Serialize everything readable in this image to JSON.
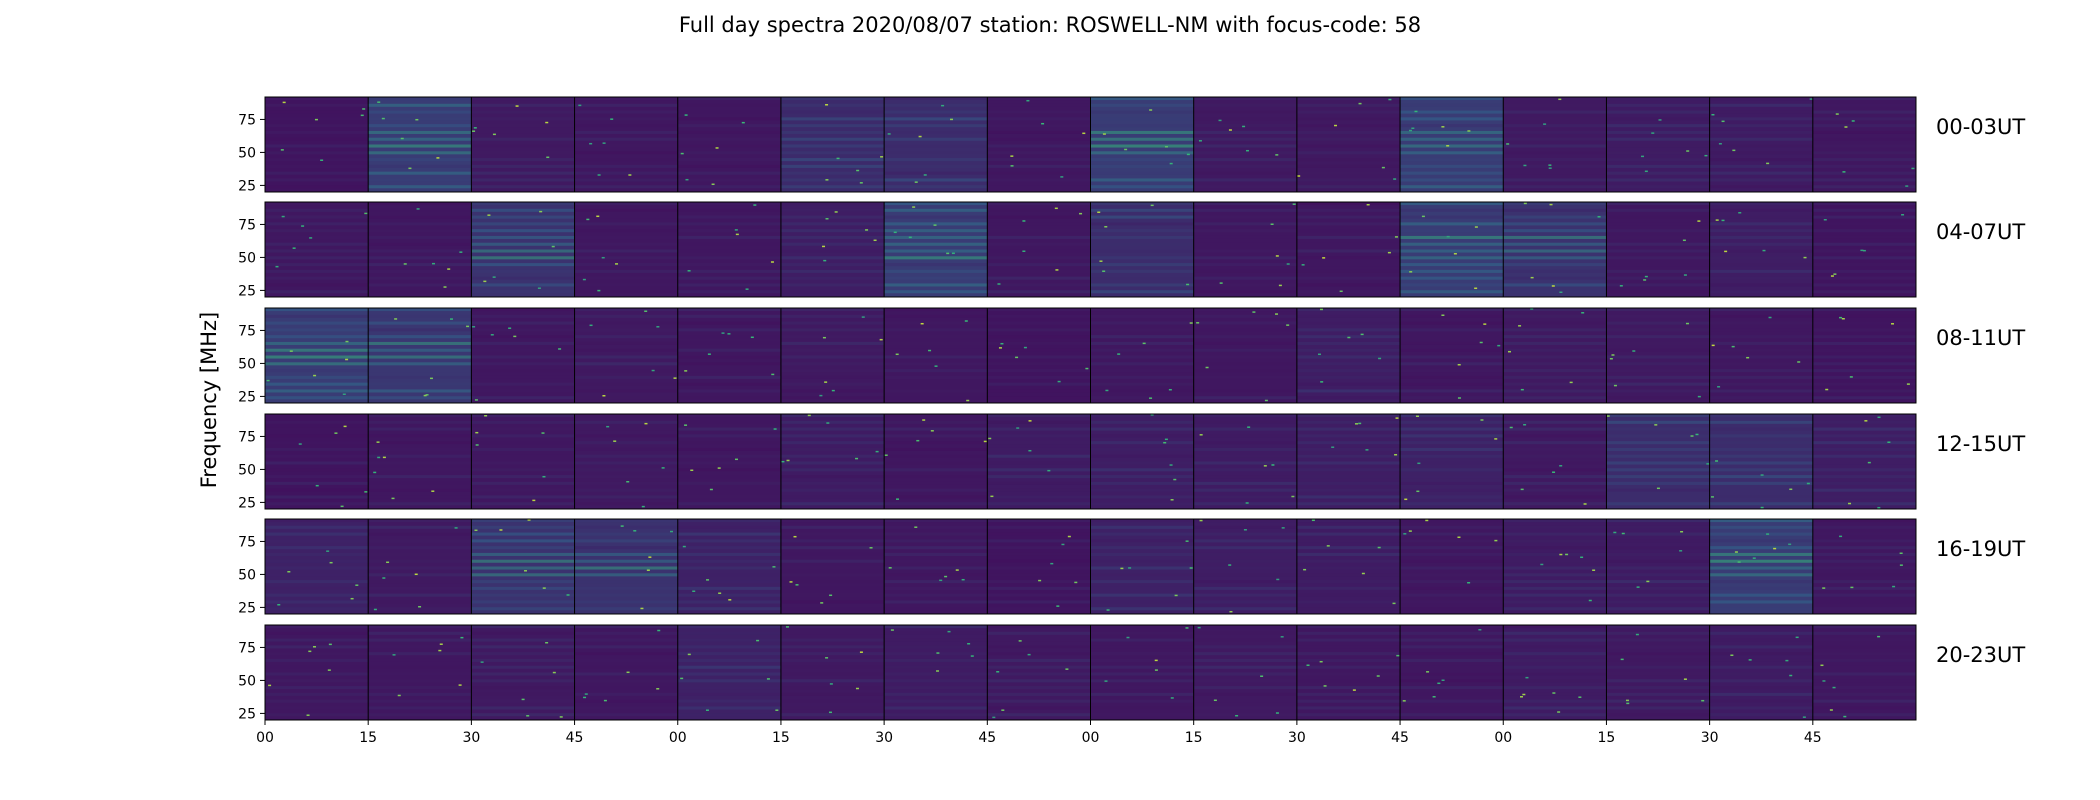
{
  "chart_data": {
    "type": "heatmap",
    "title": "Full day spectra 2020/08/07 station: ROSWELL-NM with focus-code: 58",
    "ylabel": "Frequency [MHz]",
    "xlabel": "",
    "ylim": [
      20,
      92
    ],
    "y_ticks": [
      "25",
      "50",
      "75"
    ],
    "y_tick_values": [
      25,
      50,
      75
    ],
    "x_ticks": [
      "00",
      "15",
      "30",
      "45",
      "00",
      "15",
      "30",
      "45",
      "00",
      "15",
      "30",
      "45",
      "00",
      "15",
      "30",
      "45"
    ],
    "rows": [
      "00-03UT",
      "04-07UT",
      "08-11UT",
      "12-15UT",
      "16-19UT",
      "20-23UT"
    ],
    "panels_per_row": 16,
    "minutes_per_panel": 15,
    "colormap": "viridis",
    "colors": {
      "low": "#440154",
      "mid": "#31688e",
      "high": "#35b779",
      "peak": "#fde725"
    },
    "intensity_grid": [
      [
        0.18,
        0.55,
        0.22,
        0.2,
        0.2,
        0.38,
        0.4,
        0.2,
        0.55,
        0.22,
        0.22,
        0.55,
        0.22,
        0.24,
        0.24,
        0.2
      ],
      [
        0.2,
        0.2,
        0.45,
        0.2,
        0.2,
        0.26,
        0.55,
        0.2,
        0.4,
        0.2,
        0.2,
        0.55,
        0.45,
        0.2,
        0.26,
        0.18
      ],
      [
        0.55,
        0.5,
        0.2,
        0.22,
        0.2,
        0.22,
        0.2,
        0.18,
        0.2,
        0.2,
        0.26,
        0.2,
        0.22,
        0.22,
        0.2,
        0.18
      ],
      [
        0.18,
        0.2,
        0.2,
        0.22,
        0.2,
        0.24,
        0.2,
        0.24,
        0.26,
        0.24,
        0.26,
        0.3,
        0.22,
        0.4,
        0.4,
        0.26
      ],
      [
        0.3,
        0.22,
        0.45,
        0.45,
        0.3,
        0.2,
        0.2,
        0.18,
        0.3,
        0.26,
        0.24,
        0.2,
        0.24,
        0.24,
        0.55,
        0.2
      ],
      [
        0.2,
        0.2,
        0.22,
        0.2,
        0.3,
        0.22,
        0.24,
        0.22,
        0.2,
        0.22,
        0.2,
        0.2,
        0.24,
        0.22,
        0.24,
        0.2
      ]
    ]
  }
}
